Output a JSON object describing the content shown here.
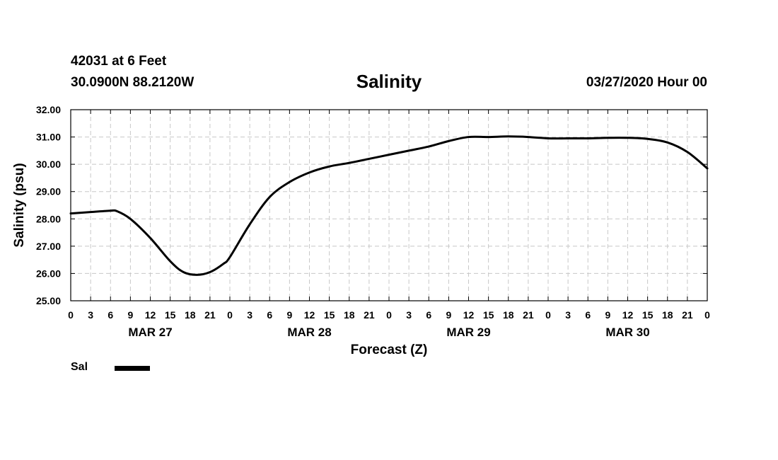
{
  "header": {
    "station": "42031 at 6 Feet",
    "coords": "30.0900N 88.2120W",
    "title": "Salinity",
    "timestamp": "03/27/2020 Hour 00"
  },
  "chart_data": {
    "type": "line",
    "title": "Salinity",
    "xlabel": "Forecast (Z)",
    "ylabel": "Salinity (psu)",
    "ylim": [
      25,
      32
    ],
    "y_ticks": [
      "25.00",
      "26.00",
      "27.00",
      "28.00",
      "29.00",
      "30.00",
      "31.00",
      "32.00"
    ],
    "x_range_hours": [
      0,
      96
    ],
    "x_tick_labels": [
      "0",
      "3",
      "6",
      "9",
      "12",
      "15",
      "18",
      "21",
      "0",
      "3",
      "6",
      "9",
      "12",
      "15",
      "18",
      "21",
      "0",
      "3",
      "6",
      "9",
      "12",
      "15",
      "18",
      "21",
      "0",
      "3",
      "6",
      "9",
      "12",
      "15",
      "18",
      "21",
      "0"
    ],
    "date_labels": [
      {
        "label": "MAR 27",
        "hour": 12
      },
      {
        "label": "MAR 28",
        "hour": 36
      },
      {
        "label": "MAR 29",
        "hour": 60
      },
      {
        "label": "MAR 30",
        "hour": 84
      }
    ],
    "grid": true,
    "legend_position": "bottom-left",
    "series": [
      {
        "name": "Sal",
        "color": "#000000",
        "x": [
          0,
          3,
          6,
          7,
          9,
          12,
          15,
          17,
          19,
          21,
          23,
          24,
          27,
          30,
          33,
          36,
          39,
          42,
          45,
          48,
          51,
          54,
          57,
          60,
          63,
          66,
          69,
          72,
          75,
          78,
          81,
          84,
          87,
          90,
          93,
          96
        ],
        "values": [
          28.2,
          28.25,
          28.3,
          28.28,
          28.0,
          27.3,
          26.45,
          26.05,
          25.95,
          26.05,
          26.35,
          26.6,
          27.8,
          28.8,
          29.35,
          29.7,
          29.92,
          30.05,
          30.2,
          30.35,
          30.5,
          30.65,
          30.85,
          31.0,
          31.0,
          31.02,
          31.0,
          30.95,
          30.95,
          30.95,
          30.97,
          30.97,
          30.93,
          30.8,
          30.45,
          29.85
        ]
      }
    ]
  }
}
